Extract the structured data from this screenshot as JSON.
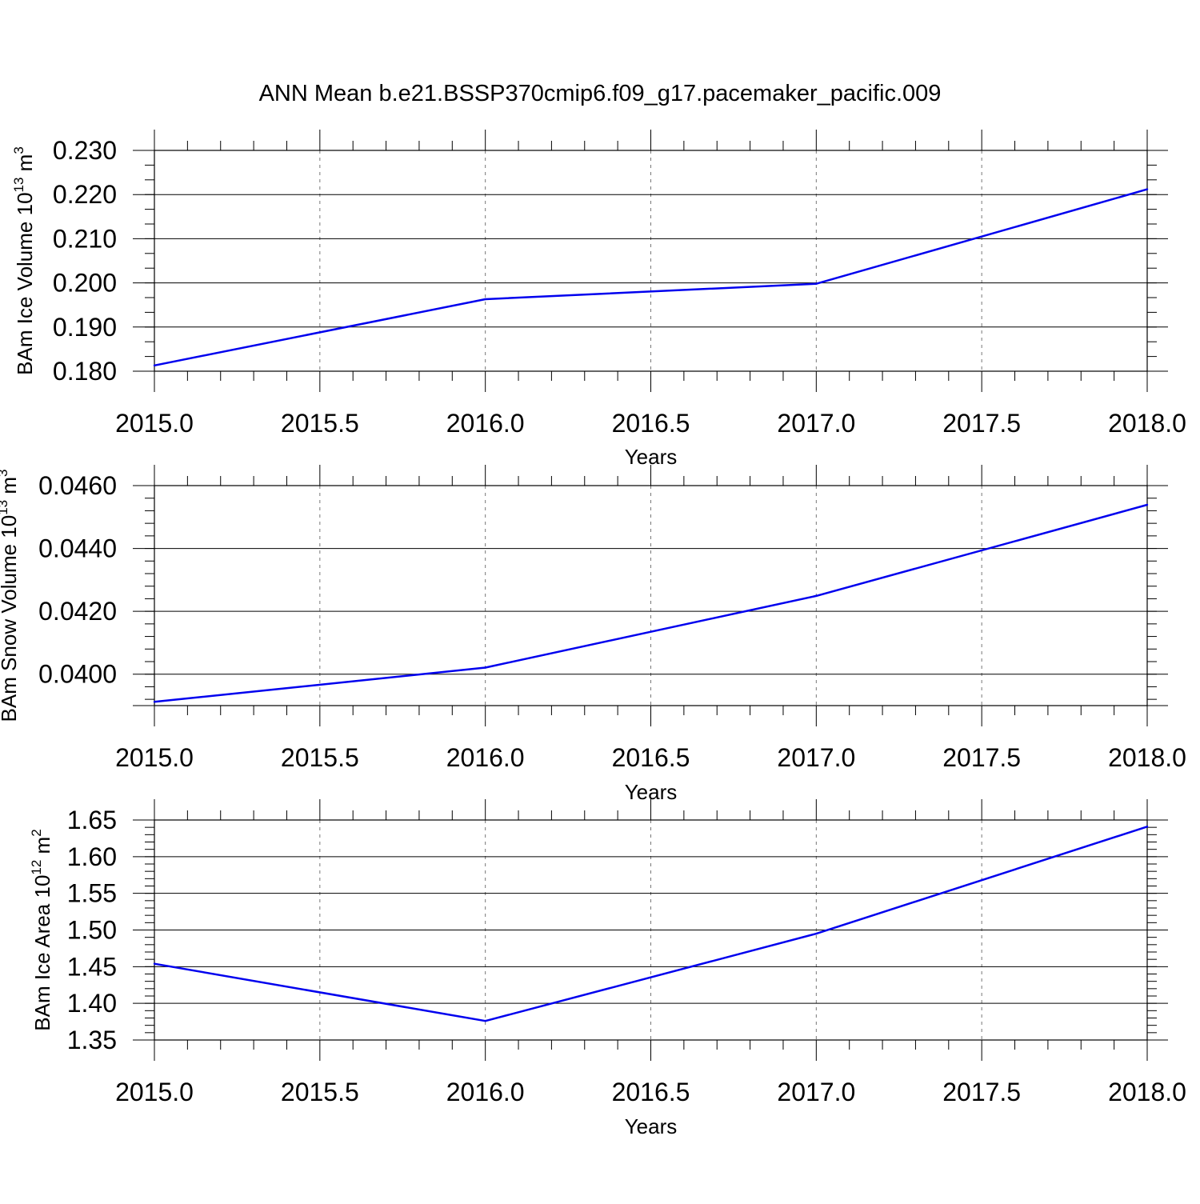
{
  "title": "ANN Mean b.e21.BSSP370cmip6.f09_g17.pacemaker_pacific.009",
  "colors": {
    "line": "#0000ee",
    "grid": "#777777",
    "axis": "#000000"
  },
  "chart_data": [
    {
      "type": "line",
      "xlabel": "Years",
      "ylabel": "BAm Ice Volume 10",
      "ylabel_exp": "13",
      "ylabel_unit": " m",
      "ylabel_unit_exp": "3",
      "xlim": [
        2015.0,
        2018.0
      ],
      "ylim": [
        0.18,
        0.23
      ],
      "x_ticks": [
        "2015.0",
        "2015.5",
        "2016.0",
        "2016.5",
        "2017.0",
        "2017.5",
        "2018.0"
      ],
      "y_ticks": [
        "0.180",
        "0.190",
        "0.200",
        "0.210",
        "0.220",
        "0.230"
      ],
      "x": [
        2015,
        2016,
        2017,
        2018
      ],
      "values": [
        0.1813,
        0.1963,
        0.1998,
        0.2212
      ],
      "grid": "vertical dashed at major x ticks"
    },
    {
      "type": "line",
      "xlabel": "Years",
      "ylabel": "BAm Snow Volume 10",
      "ylabel_exp": "13",
      "ylabel_unit": " m",
      "ylabel_unit_exp": "3",
      "xlim": [
        2015.0,
        2018.0
      ],
      "ylim": [
        0.039,
        0.046
      ],
      "x_ticks": [
        "2015.0",
        "2015.5",
        "2016.0",
        "2016.5",
        "2017.0",
        "2017.5",
        "2018.0"
      ],
      "y_ticks": [
        "0.0400",
        "0.0420",
        "0.0440",
        "0.0460"
      ],
      "x": [
        2015,
        2016,
        2017,
        2018
      ],
      "values": [
        0.03912,
        0.04021,
        0.04249,
        0.04539
      ],
      "grid": "vertical dashed at major x ticks"
    },
    {
      "type": "line",
      "xlabel": "Years",
      "ylabel": "BAm Ice Area 10",
      "ylabel_exp": "12",
      "ylabel_unit": " m",
      "ylabel_unit_exp": "2",
      "xlim": [
        2015.0,
        2018.0
      ],
      "ylim": [
        1.35,
        1.65
      ],
      "x_ticks": [
        "2015.0",
        "2015.5",
        "2016.0",
        "2016.5",
        "2017.0",
        "2017.5",
        "2018.0"
      ],
      "y_ticks": [
        "1.35",
        "1.40",
        "1.45",
        "1.50",
        "1.55",
        "1.60",
        "1.65"
      ],
      "x": [
        2015,
        2016,
        2017,
        2018
      ],
      "values": [
        1.454,
        1.376,
        1.495,
        1.641
      ],
      "grid": "vertical dashed at major x ticks"
    }
  ]
}
